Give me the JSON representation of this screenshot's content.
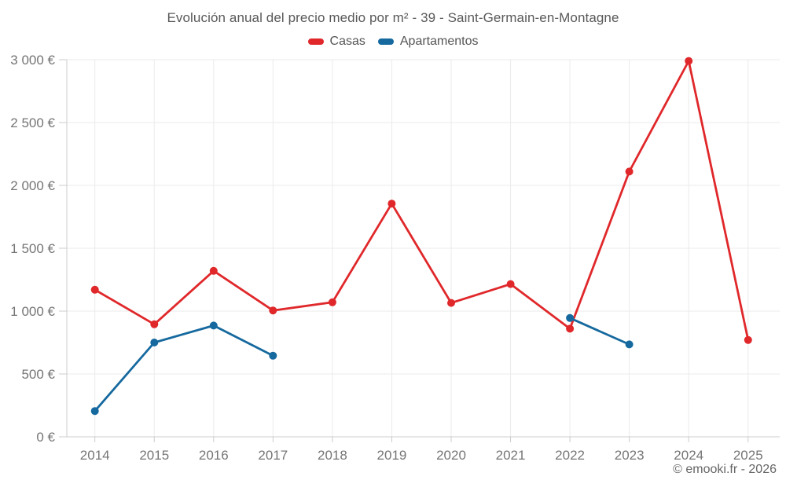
{
  "footer": {
    "text": "© emooki.fr - 2026"
  },
  "chart_data": {
    "type": "line",
    "title": "Evolución anual del precio medio por m² - 39 - Saint-Germain-en-Montagne",
    "categories": [
      "2014",
      "2015",
      "2016",
      "2017",
      "2018",
      "2019",
      "2020",
      "2021",
      "2022",
      "2023",
      "2024",
      "2025"
    ],
    "series": [
      {
        "name": "Casas",
        "color": "#e0282b",
        "values": [
          1170,
          895,
          1320,
          1005,
          1070,
          1855,
          1065,
          1215,
          860,
          2110,
          2990,
          770
        ]
      },
      {
        "name": "Apartamentos",
        "color": "#15699e",
        "values": [
          205,
          750,
          885,
          645,
          null,
          null,
          null,
          null,
          945,
          735,
          null,
          null
        ]
      }
    ],
    "xlabel": "",
    "ylabel": "",
    "ylim": [
      0,
      3000
    ],
    "y_ticks": [
      {
        "value": 0,
        "label": "0 €"
      },
      {
        "value": 500,
        "label": "500 €"
      },
      {
        "value": 1000,
        "label": "1 000 €"
      },
      {
        "value": 1500,
        "label": "1 500 €"
      },
      {
        "value": 2000,
        "label": "2 000 €"
      },
      {
        "value": 2500,
        "label": "2 500 €"
      },
      {
        "value": 3000,
        "label": "3 000 €"
      }
    ],
    "grid": true,
    "legend_position": "top",
    "style": {
      "grid_color": "#ebebeb",
      "axis_color": "#cccccc",
      "label_color": "#757575",
      "title_color": "#595959"
    }
  }
}
